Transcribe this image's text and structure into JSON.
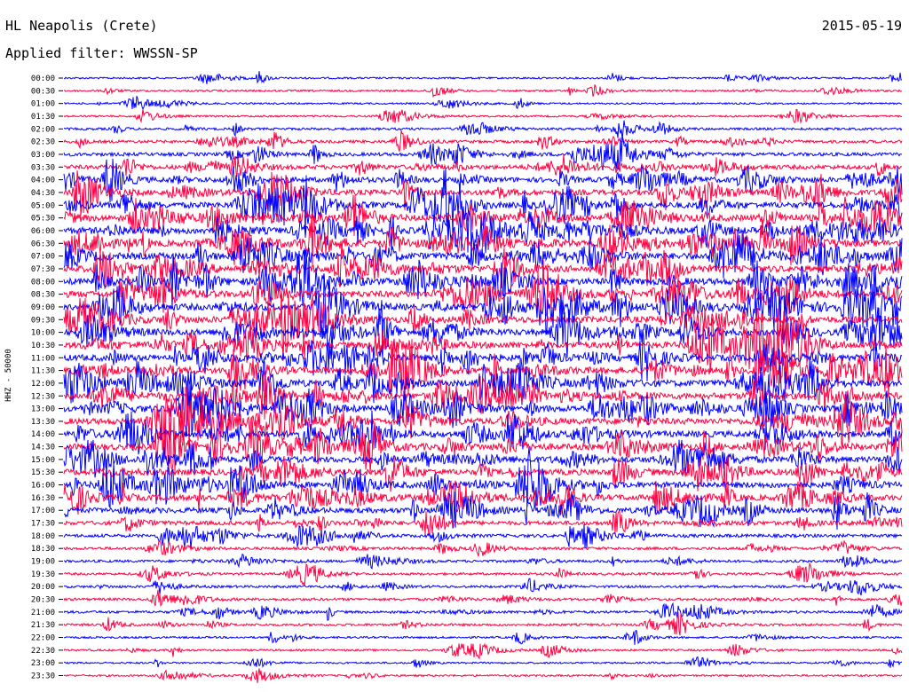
{
  "header": {
    "station": "HL Neapolis (Crete)",
    "date": "2015-05-19",
    "filter": "Applied filter: WWSSN-SP"
  },
  "chart_data": {
    "type": "line",
    "title": "HL Neapolis (Crete)",
    "subtitle": "Applied filter: WWSSN-SP",
    "ylabel": "HHZ - 50000",
    "xlabel": "",
    "categories": [
      "00:00",
      "00:30",
      "01:00",
      "01:30",
      "02:00",
      "02:30",
      "03:00",
      "03:30",
      "04:00",
      "04:30",
      "05:00",
      "05:30",
      "06:00",
      "06:30",
      "07:00",
      "07:30",
      "08:00",
      "08:30",
      "09:00",
      "09:30",
      "10:00",
      "10:30",
      "11:00",
      "11:30",
      "12:00",
      "12:30",
      "13:00",
      "13:30",
      "14:00",
      "14:30",
      "15:00",
      "15:30",
      "16:00",
      "16:30",
      "17:00",
      "17:30",
      "18:00",
      "18:30",
      "19:00",
      "19:30",
      "20:00",
      "20:30",
      "21:00",
      "21:30",
      "22:00",
      "22:30",
      "23:00",
      "23:30"
    ],
    "series_colors": [
      "#0000ff",
      "#ff0040"
    ],
    "activity": [
      0.12,
      0.14,
      0.1,
      0.14,
      0.22,
      0.32,
      0.42,
      0.55,
      0.68,
      0.78,
      0.85,
      0.9,
      0.92,
      0.94,
      0.95,
      0.95,
      0.95,
      0.95,
      0.94,
      0.93,
      0.92,
      0.92,
      0.92,
      0.92,
      0.92,
      0.91,
      0.9,
      0.89,
      0.88,
      0.86,
      0.84,
      0.84,
      0.84,
      0.82,
      0.74,
      0.52,
      0.38,
      0.3,
      0.26,
      0.24,
      0.24,
      0.26,
      0.26,
      0.22,
      0.16,
      0.16,
      0.12,
      0.14
    ],
    "grid": false,
    "legend": "none"
  }
}
